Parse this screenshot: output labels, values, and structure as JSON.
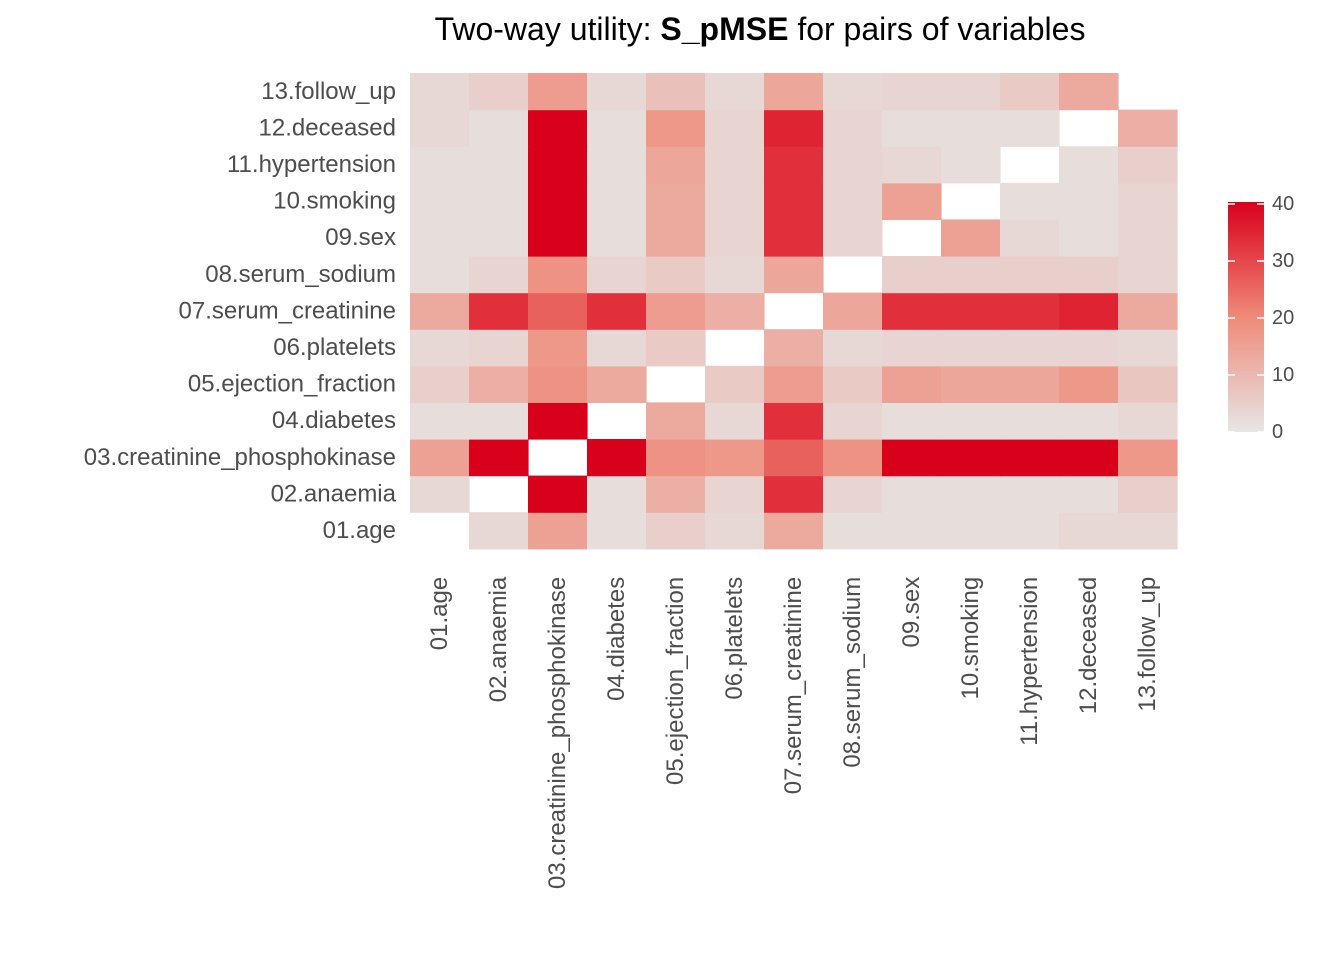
{
  "chart_data": {
    "type": "heatmap",
    "title_prefix": "Two-way utility: ",
    "title_bold": "S_pMSE",
    "title_suffix": " for pairs of variables",
    "xlabel": "",
    "ylabel": "",
    "variables": [
      "01.age",
      "02.anaemia",
      "03.creatinine_phosphokinase",
      "04.diabetes",
      "05.ejection_fraction",
      "06.platelets",
      "07.serum_creatinine",
      "08.serum_sodium",
      "09.sex",
      "10.smoking",
      "11.hypertension",
      "12.deceased",
      "13.follow_up"
    ],
    "matrix": [
      [
        null,
        3,
        15,
        2,
        5,
        3,
        13,
        2,
        2,
        2,
        2,
        3,
        3
      ],
      [
        3,
        null,
        40,
        2,
        12,
        4,
        33,
        4,
        2,
        2,
        2,
        2,
        5
      ],
      [
        15,
        40,
        null,
        40,
        18,
        17,
        26,
        18,
        40,
        40,
        40,
        40,
        17
      ],
      [
        2,
        2,
        40,
        null,
        13,
        3,
        33,
        4,
        2,
        2,
        2,
        2,
        3
      ],
      [
        5,
        12,
        18,
        13,
        null,
        6,
        16,
        6,
        15,
        14,
        14,
        17,
        7
      ],
      [
        3,
        4,
        17,
        3,
        6,
        null,
        12,
        3,
        4,
        4,
        4,
        4,
        3
      ],
      [
        13,
        33,
        26,
        33,
        16,
        12,
        null,
        14,
        33,
        33,
        33,
        35,
        13
      ],
      [
        2,
        4,
        18,
        4,
        6,
        3,
        14,
        null,
        5,
        5,
        5,
        5,
        4
      ],
      [
        2,
        2,
        40,
        2,
        13,
        4,
        33,
        4,
        null,
        15,
        3,
        2,
        4
      ],
      [
        2,
        2,
        40,
        2,
        13,
        4,
        33,
        4,
        15,
        null,
        2,
        2,
        4
      ],
      [
        2,
        2,
        40,
        2,
        14,
        4,
        33,
        4,
        3,
        2,
        null,
        2,
        5
      ],
      [
        3,
        2,
        40,
        2,
        17,
        4,
        35,
        4,
        2,
        2,
        2,
        null,
        12
      ],
      [
        3,
        5,
        16,
        3,
        8,
        3,
        14,
        3,
        4,
        4,
        6,
        13,
        null
      ]
    ],
    "color_scale": {
      "low": "#e6e6e6",
      "mid": "#ef8a79",
      "high": "#d9001b",
      "min": 0,
      "max": 40
    },
    "legend": {
      "position": "right",
      "ticks": [
        0,
        10,
        20,
        30,
        40
      ]
    },
    "grid": false
  }
}
